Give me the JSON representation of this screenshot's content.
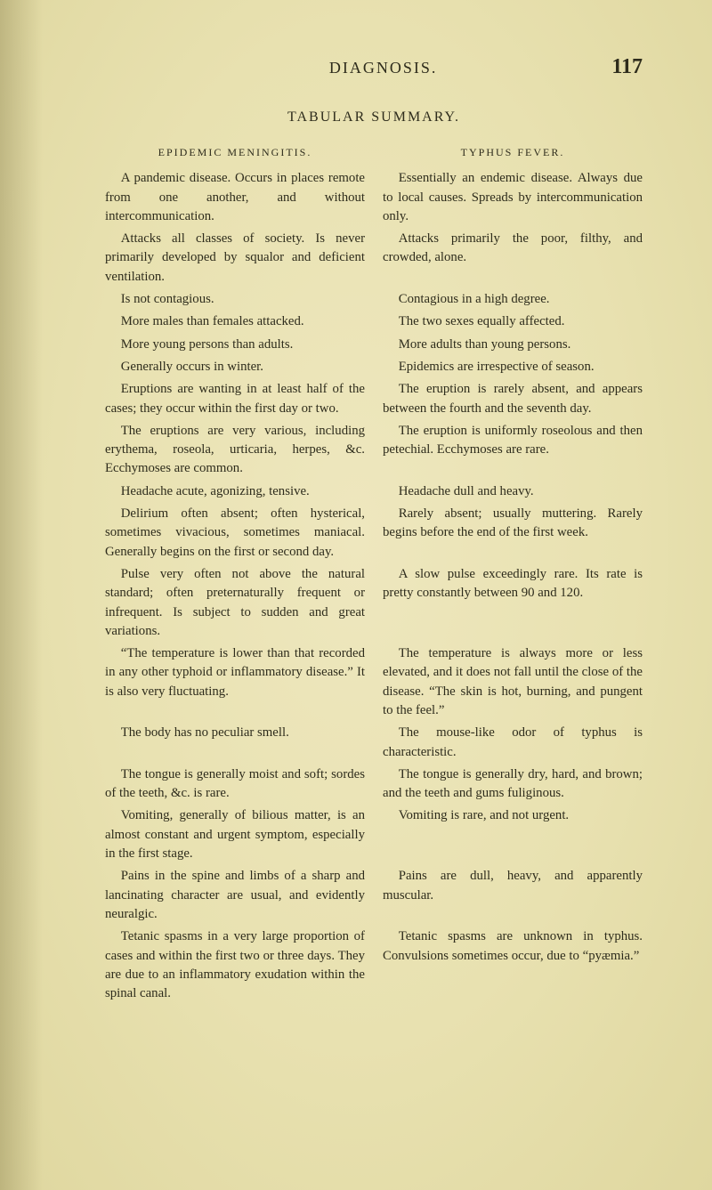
{
  "page": {
    "running_title": "DIAGNOSIS.",
    "number": "117",
    "section_title": "TABULAR SUMMARY.",
    "background_color": "#e9e2b3",
    "text_color": "#2e2c1c",
    "font_family": "Georgia, serif",
    "body_fontsize_pt": 11,
    "title_fontsize_pt": 12
  },
  "table": {
    "type": "two-column-comparison",
    "column_headers": [
      "EPIDEMIC MENINGITIS.",
      "TYPHUS FEVER."
    ],
    "rows": [
      {
        "left": "A pandemic disease. Occurs in places remote from one another, and without intercommunication.",
        "right": "Essentially an endemic disease. Always due to local causes. Spreads by intercommunication only."
      },
      {
        "left": "Attacks all classes of society. Is never primarily developed by squalor and deficient ventilation.",
        "right": "Attacks primarily the poor, filthy, and crowded, alone."
      },
      {
        "left": "Is not contagious.",
        "right": "Contagious in a high degree."
      },
      {
        "left": "More males than females attacked.",
        "right": "The two sexes equally affected."
      },
      {
        "left": "More young persons than adults.",
        "right": "More adults than young persons."
      },
      {
        "left": "Generally occurs in winter.",
        "right": "Epidemics are irrespective of season."
      },
      {
        "left": "Eruptions are wanting in at least half of the cases; they occur within the first day or two.",
        "right": "The eruption is rarely absent, and appears between the fourth and the seventh day."
      },
      {
        "left": "The eruptions are very various, including erythema, roseola, urticaria, herpes, &c. Ecchymoses are common.",
        "right": "The eruption is uniformly roseolous and then petechial. Ecchymoses are rare."
      },
      {
        "left": "Headache acute, agonizing, tensive.",
        "right": "Headache dull and heavy."
      },
      {
        "left": "Delirium often absent; often hysterical, sometimes vivacious, sometimes maniacal. Generally begins on the first or second day.",
        "right": "Rarely absent; usually muttering. Rarely begins before the end of the first week."
      },
      {
        "left": "Pulse very often not above the natural standard; often preternaturally frequent or infrequent. Is subject to sudden and great variations.",
        "right": "A slow pulse exceedingly rare. Its rate is pretty constantly between 90 and 120."
      },
      {
        "left": "“The temperature is lower than that recorded in any other typhoid or inflammatory disease.” It is also very fluctuating.",
        "right": "The temperature is always more or less elevated, and it does not fall until the close of the disease. “The skin is hot, burning, and pungent to the feel.”"
      },
      {
        "left": "The body has no peculiar smell.",
        "right": "The mouse-like odor of typhus is characteristic."
      },
      {
        "left": "The tongue is generally moist and soft; sordes of the teeth, &c. is rare.",
        "right": "The tongue is generally dry, hard, and brown; and the teeth and gums fuliginous."
      },
      {
        "left": "Vomiting, generally of bilious matter, is an almost constant and urgent symptom, especially in the first stage.",
        "right": "Vomiting is rare, and not urgent."
      },
      {
        "left": "Pains in the spine and limbs of a sharp and lancinating character are usual, and evidently neuralgic.",
        "right": "Pains are dull, heavy, and apparently muscular."
      },
      {
        "left": "Tetanic spasms in a very large proportion of cases and within the first two or three days. They are due to an inflammatory exudation within the spinal canal.",
        "right": "Tetanic spasms are unknown in typhus. Convulsions sometimes occur, due to “pyæmia.”"
      }
    ]
  }
}
